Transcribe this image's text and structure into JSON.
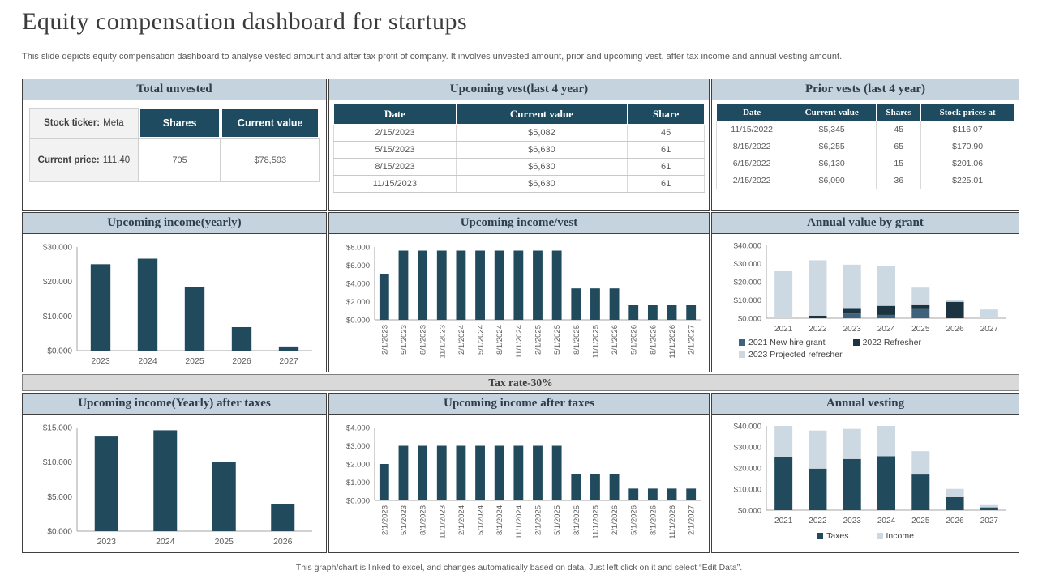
{
  "header": {
    "title": "Equity compensation dashboard for startups",
    "subtitle": "This slide depicts  equity compensation dashboard to analyse vested amount and after tax profit of company. It involves unvested amount, prior and upcoming vest, after tax income and annual vesting amount."
  },
  "colors": {
    "accent_dark": "#1e4b5f",
    "bar_teal": "#214a5c",
    "series_medium_blue": "#3e637e",
    "series_dark_navy": "#1c3442",
    "series_light_blue": "#ccd8e2",
    "panel_header_bg": "#c4d3de",
    "band_bg": "#d9d9d9"
  },
  "tables": {
    "total_unvested": {
      "title": "Total unvested",
      "ticker_label": "Stock ticker:",
      "ticker_value": "Meta",
      "price_label": "Current price:",
      "price_value": "111.40",
      "columns": [
        "Shares",
        "Current value"
      ],
      "shares": "705",
      "current_value": "$78,593"
    },
    "upcoming_vest": {
      "title": "Upcoming vest(last 4 year)",
      "columns": [
        "Date",
        "Current value",
        "Share"
      ],
      "rows": [
        [
          "2/15/2023",
          "$5,082",
          "45"
        ],
        [
          "5/15/2023",
          "$6,630",
          "61"
        ],
        [
          "8/15/2023",
          "$6,630",
          "61"
        ],
        [
          "11/15/2023",
          "$6,630",
          "61"
        ]
      ]
    },
    "prior_vests": {
      "title": "Prior vests (last 4 year)",
      "columns": [
        "Date",
        "Current value",
        "Shares",
        "Stock prices at"
      ],
      "rows": [
        [
          "11/15/2022",
          "$5,345",
          "45",
          "$116.07"
        ],
        [
          "8/15/2022",
          "$6,255",
          "65",
          "$170.90"
        ],
        [
          "6/15/2022",
          "$6,130",
          "15",
          "$201.06"
        ],
        [
          "2/15/2022",
          "$6,090",
          "36",
          "$225.01"
        ]
      ]
    }
  },
  "tax_band": {
    "label": "Tax rate-30%"
  },
  "chart_data": [
    {
      "id": "upcoming_income_yearly",
      "type": "bar",
      "title": "Upcoming income(yearly)",
      "categories": [
        "2023",
        "2024",
        "2025",
        "2026",
        "2027"
      ],
      "values": [
        25000,
        26600,
        18300,
        6800,
        1200
      ],
      "bar_color": "#214a5c",
      "xlabel": "",
      "ylabel": "",
      "ylim": [
        0,
        30000
      ],
      "ytick_values": [
        0,
        10000,
        20000,
        30000
      ],
      "ytick_labels": [
        "$0.000",
        "$10.000",
        "$20.000",
        "$30.000"
      ],
      "grid": false,
      "legend": "none"
    },
    {
      "id": "upcoming_income_vest",
      "type": "bar",
      "title": "Upcoming income/vest",
      "categories": [
        "2/1/2023",
        "5/1/2023",
        "8/1/2023",
        "11/1/2023",
        "2/1/2024",
        "5/1/2024",
        "8/1/2024",
        "11/1/2024",
        "2/1/2025",
        "5/1/2025",
        "8/1/2025",
        "11/1/2025",
        "2/1/2026",
        "5/1/2026",
        "8/1/2026",
        "11/1/2026",
        "2/1/2027"
      ],
      "values": [
        5000,
        7600,
        7600,
        7600,
        7600,
        7600,
        7600,
        7600,
        7600,
        7600,
        3450,
        3450,
        3450,
        1600,
        1600,
        1600,
        1600
      ],
      "bar_color": "#214a5c",
      "xlabel": "",
      "ylabel": "",
      "ylim": [
        0,
        8000
      ],
      "ytick_values": [
        0,
        2000,
        4000,
        6000,
        8000
      ],
      "ytick_labels": [
        "$0.000",
        "$2.000",
        "$4.000",
        "$6.000",
        "$8.000"
      ],
      "grid": false,
      "legend": "none"
    },
    {
      "id": "annual_value_by_grant",
      "type": "bar",
      "title": "Annual value by grant",
      "categories": [
        "2021",
        "2022",
        "2023",
        "2024",
        "2025",
        "2026",
        "2027"
      ],
      "series": [
        {
          "name": "2021 New hire grant",
          "color": "#3e637e",
          "values": [
            0,
            0,
            2600,
            1800,
            5400,
            0,
            0
          ]
        },
        {
          "name": "2022 Refresher",
          "color": "#1c3442",
          "values": [
            0,
            1400,
            3000,
            5000,
            1800,
            9000,
            0
          ]
        },
        {
          "name": "2023 Projected refresher",
          "color": "#ccd8e2",
          "values": [
            25800,
            30400,
            23800,
            21800,
            9600,
            1200,
            4800
          ]
        }
      ],
      "stacked": true,
      "xlabel": "",
      "ylabel": "",
      "ylim": [
        0,
        40000
      ],
      "ytick_values": [
        0,
        10000,
        20000,
        30000,
        40000
      ],
      "ytick_labels": [
        "$0.000",
        "$10.000",
        "$20.000",
        "$30.000",
        "$40.000"
      ],
      "grid": false,
      "legend": "bottom"
    },
    {
      "id": "upcoming_income_yearly_after_taxes",
      "type": "bar",
      "title": "Upcoming income(Yearly) after taxes",
      "categories": [
        "2023",
        "2024",
        "2025",
        "2026"
      ],
      "values": [
        13700,
        14600,
        10000,
        3900
      ],
      "bar_color": "#214a5c",
      "xlabel": "",
      "ylabel": "",
      "ylim": [
        0,
        15000
      ],
      "ytick_values": [
        0,
        5000,
        10000,
        15000
      ],
      "ytick_labels": [
        "$0.000",
        "$5.000",
        "$10.000",
        "$15.000"
      ],
      "grid": false,
      "legend": "none"
    },
    {
      "id": "upcoming_income_after_taxes",
      "type": "bar",
      "title": "Upcoming income after taxes",
      "categories": [
        "2/1/2023",
        "5/1/2023",
        "8/1/2023",
        "11/1/2023",
        "2/1/2024",
        "5/1/2024",
        "8/1/2024",
        "11/1/2024",
        "2/1/2025",
        "5/1/2025",
        "8/1/2025",
        "11/1/2025",
        "2/1/2026",
        "5/1/2026",
        "8/1/2026",
        "11/1/2026",
        "2/1/2027"
      ],
      "values": [
        2000,
        3000,
        3000,
        3000,
        3000,
        3000,
        3000,
        3000,
        3000,
        3000,
        1450,
        1450,
        1450,
        650,
        650,
        650,
        650
      ],
      "bar_color": "#214a5c",
      "xlabel": "",
      "ylabel": "",
      "ylim": [
        0,
        4000
      ],
      "ytick_values": [
        0,
        1000,
        2000,
        3000,
        4000
      ],
      "ytick_labels": [
        "$0.000",
        "$1.000",
        "$2.000",
        "$3.000",
        "$4.000"
      ],
      "grid": false,
      "legend": "none"
    },
    {
      "id": "annual_vesting",
      "type": "bar",
      "title": "Annual vesting",
      "categories": [
        "2021",
        "2022",
        "2023",
        "2024",
        "2025",
        "2026",
        "2027"
      ],
      "series": [
        {
          "name": "Taxes",
          "color": "#214a5c",
          "values": [
            25300,
            19700,
            24300,
            25600,
            16900,
            6200,
            1300
          ]
        },
        {
          "name": "Income",
          "color": "#ccd8e2",
          "values": [
            14700,
            18100,
            14300,
            14400,
            11100,
            3900,
            1100
          ]
        }
      ],
      "stacked": true,
      "xlabel": "",
      "ylabel": "",
      "ylim": [
        0,
        40000
      ],
      "ytick_values": [
        0,
        10000,
        20000,
        30000,
        40000
      ],
      "ytick_labels": [
        "$0.000",
        "$10.000",
        "$20.000",
        "$30.000",
        "$40.000"
      ],
      "grid": false,
      "legend": "bottom"
    }
  ],
  "footer": {
    "note": "This graph/chart is linked to excel,  and changes automatically based on data. Just left click on it and select “Edit Data”."
  }
}
